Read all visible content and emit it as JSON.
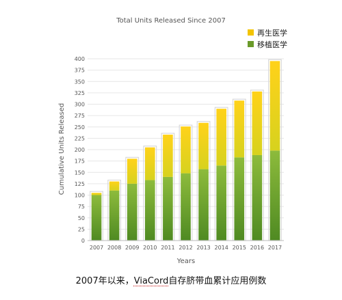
{
  "chart_data": {
    "type": "bar",
    "stacked": true,
    "title": "Total Units Released Since 2007",
    "xlabel": "Years",
    "ylabel": "Cumulative Units Released",
    "ylim": [
      0,
      400
    ],
    "ytick_step": 25,
    "categories": [
      "2007",
      "2008",
      "2009",
      "2010",
      "2011",
      "2012",
      "2013",
      "2014",
      "2015",
      "2016",
      "2017"
    ],
    "series": [
      {
        "name": "移植医学",
        "color": "#6a9a2a",
        "values": [
          100,
          110,
          125,
          133,
          140,
          148,
          157,
          165,
          183,
          188,
          198
        ]
      },
      {
        "name": "再生医学",
        "color": "#f3c400",
        "values": [
          5,
          20,
          55,
          72,
          93,
          103,
          102,
          125,
          125,
          140,
          197
        ]
      }
    ],
    "legend": "top-right",
    "grid": true
  },
  "caption": {
    "prefix": "2007年以来，",
    "brand": "ViaCord",
    "suffix": "自存脐带血累计应用例数"
  }
}
